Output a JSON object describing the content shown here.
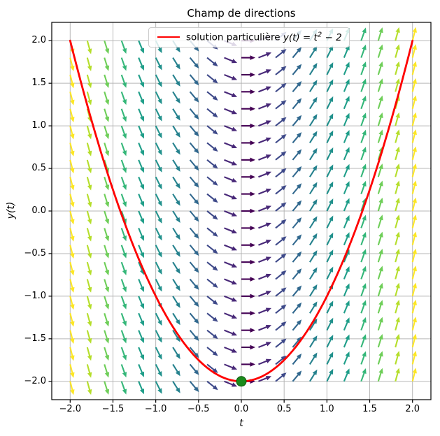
{
  "figure": {
    "title": "Champ de directions",
    "background": "#ffffff"
  },
  "legend": {
    "full_label": "solution particulière y(t) = t² − 2",
    "label_prefix": "solution particulière ",
    "label_math": "y(t) = t",
    "label_exponent": "2",
    "label_suffix": " − 2",
    "line_color": "#ff0000",
    "position": "upper center"
  },
  "axes": {
    "xlabel": "t",
    "ylabel": "y(t)",
    "xlim": [
      -2.215,
      2.215
    ],
    "ylim": [
      -2.215,
      2.215
    ],
    "x_tick_values": [
      -2,
      -1.5,
      -1,
      -0.5,
      0,
      0.5,
      1,
      1.5,
      2
    ],
    "x_tick_labels": [
      "−2.0",
      "−1.5",
      "−1.0",
      "−0.5",
      "0.0",
      "0.5",
      "1.0",
      "1.5",
      "2.0"
    ],
    "y_tick_values": [
      -2,
      -1.5,
      -1,
      -0.5,
      0,
      0.5,
      1,
      1.5,
      2
    ],
    "y_tick_labels": [
      "−2.0",
      "−1.5",
      "−1.0",
      "−0.5",
      "0.0",
      "0.5",
      "1.0",
      "1.5",
      "2.0"
    ],
    "grid": true,
    "grid_color": "#b0b0b0",
    "spine_color": "#000000",
    "tick_color": "#000000"
  },
  "chart_data": {
    "type": "quiver",
    "title": "Champ de directions",
    "xlabel": "t",
    "ylabel": "y(t)",
    "xlim": [
      -2.215,
      2.215
    ],
    "ylim": [
      -2.215,
      2.215
    ],
    "field": {
      "ode": "dy/dt = 2t",
      "slope_t_coefficient": 2,
      "t_min": -2,
      "t_max": 2,
      "y_min": -2,
      "y_max": 2,
      "grid_step": 0.2,
      "n_cols": 21,
      "n_rows": 21,
      "arrows_normalized": true,
      "color_by": "|dy/dt| in [0, 4]",
      "colormap": "viridis",
      "colormap_stops": [
        "#440154",
        "#482878",
        "#3e4989",
        "#31688e",
        "#26828e",
        "#21918c",
        "#1f9e89",
        "#35b779",
        "#6ece58",
        "#b5de2b",
        "#fde725"
      ]
    },
    "solution_curve": {
      "formula": "y(t) = t^2 - 2",
      "a": 1,
      "c": -2,
      "t_min": -2,
      "t_max": 2,
      "color": "#ff0000",
      "linewidth": 2.8,
      "key_points": [
        [
          -2,
          2
        ],
        [
          -1.5,
          0.25
        ],
        [
          -1,
          -1
        ],
        [
          -0.5,
          -1.75
        ],
        [
          0,
          -2
        ],
        [
          0.5,
          -1.75
        ],
        [
          1,
          -1
        ],
        [
          1.5,
          0.25
        ],
        [
          2,
          2
        ]
      ]
    },
    "initial_point": {
      "t": 0,
      "y": -2,
      "color": "#1b8a1b",
      "edge_color": "#0d5c0d",
      "marker": "circle"
    }
  }
}
